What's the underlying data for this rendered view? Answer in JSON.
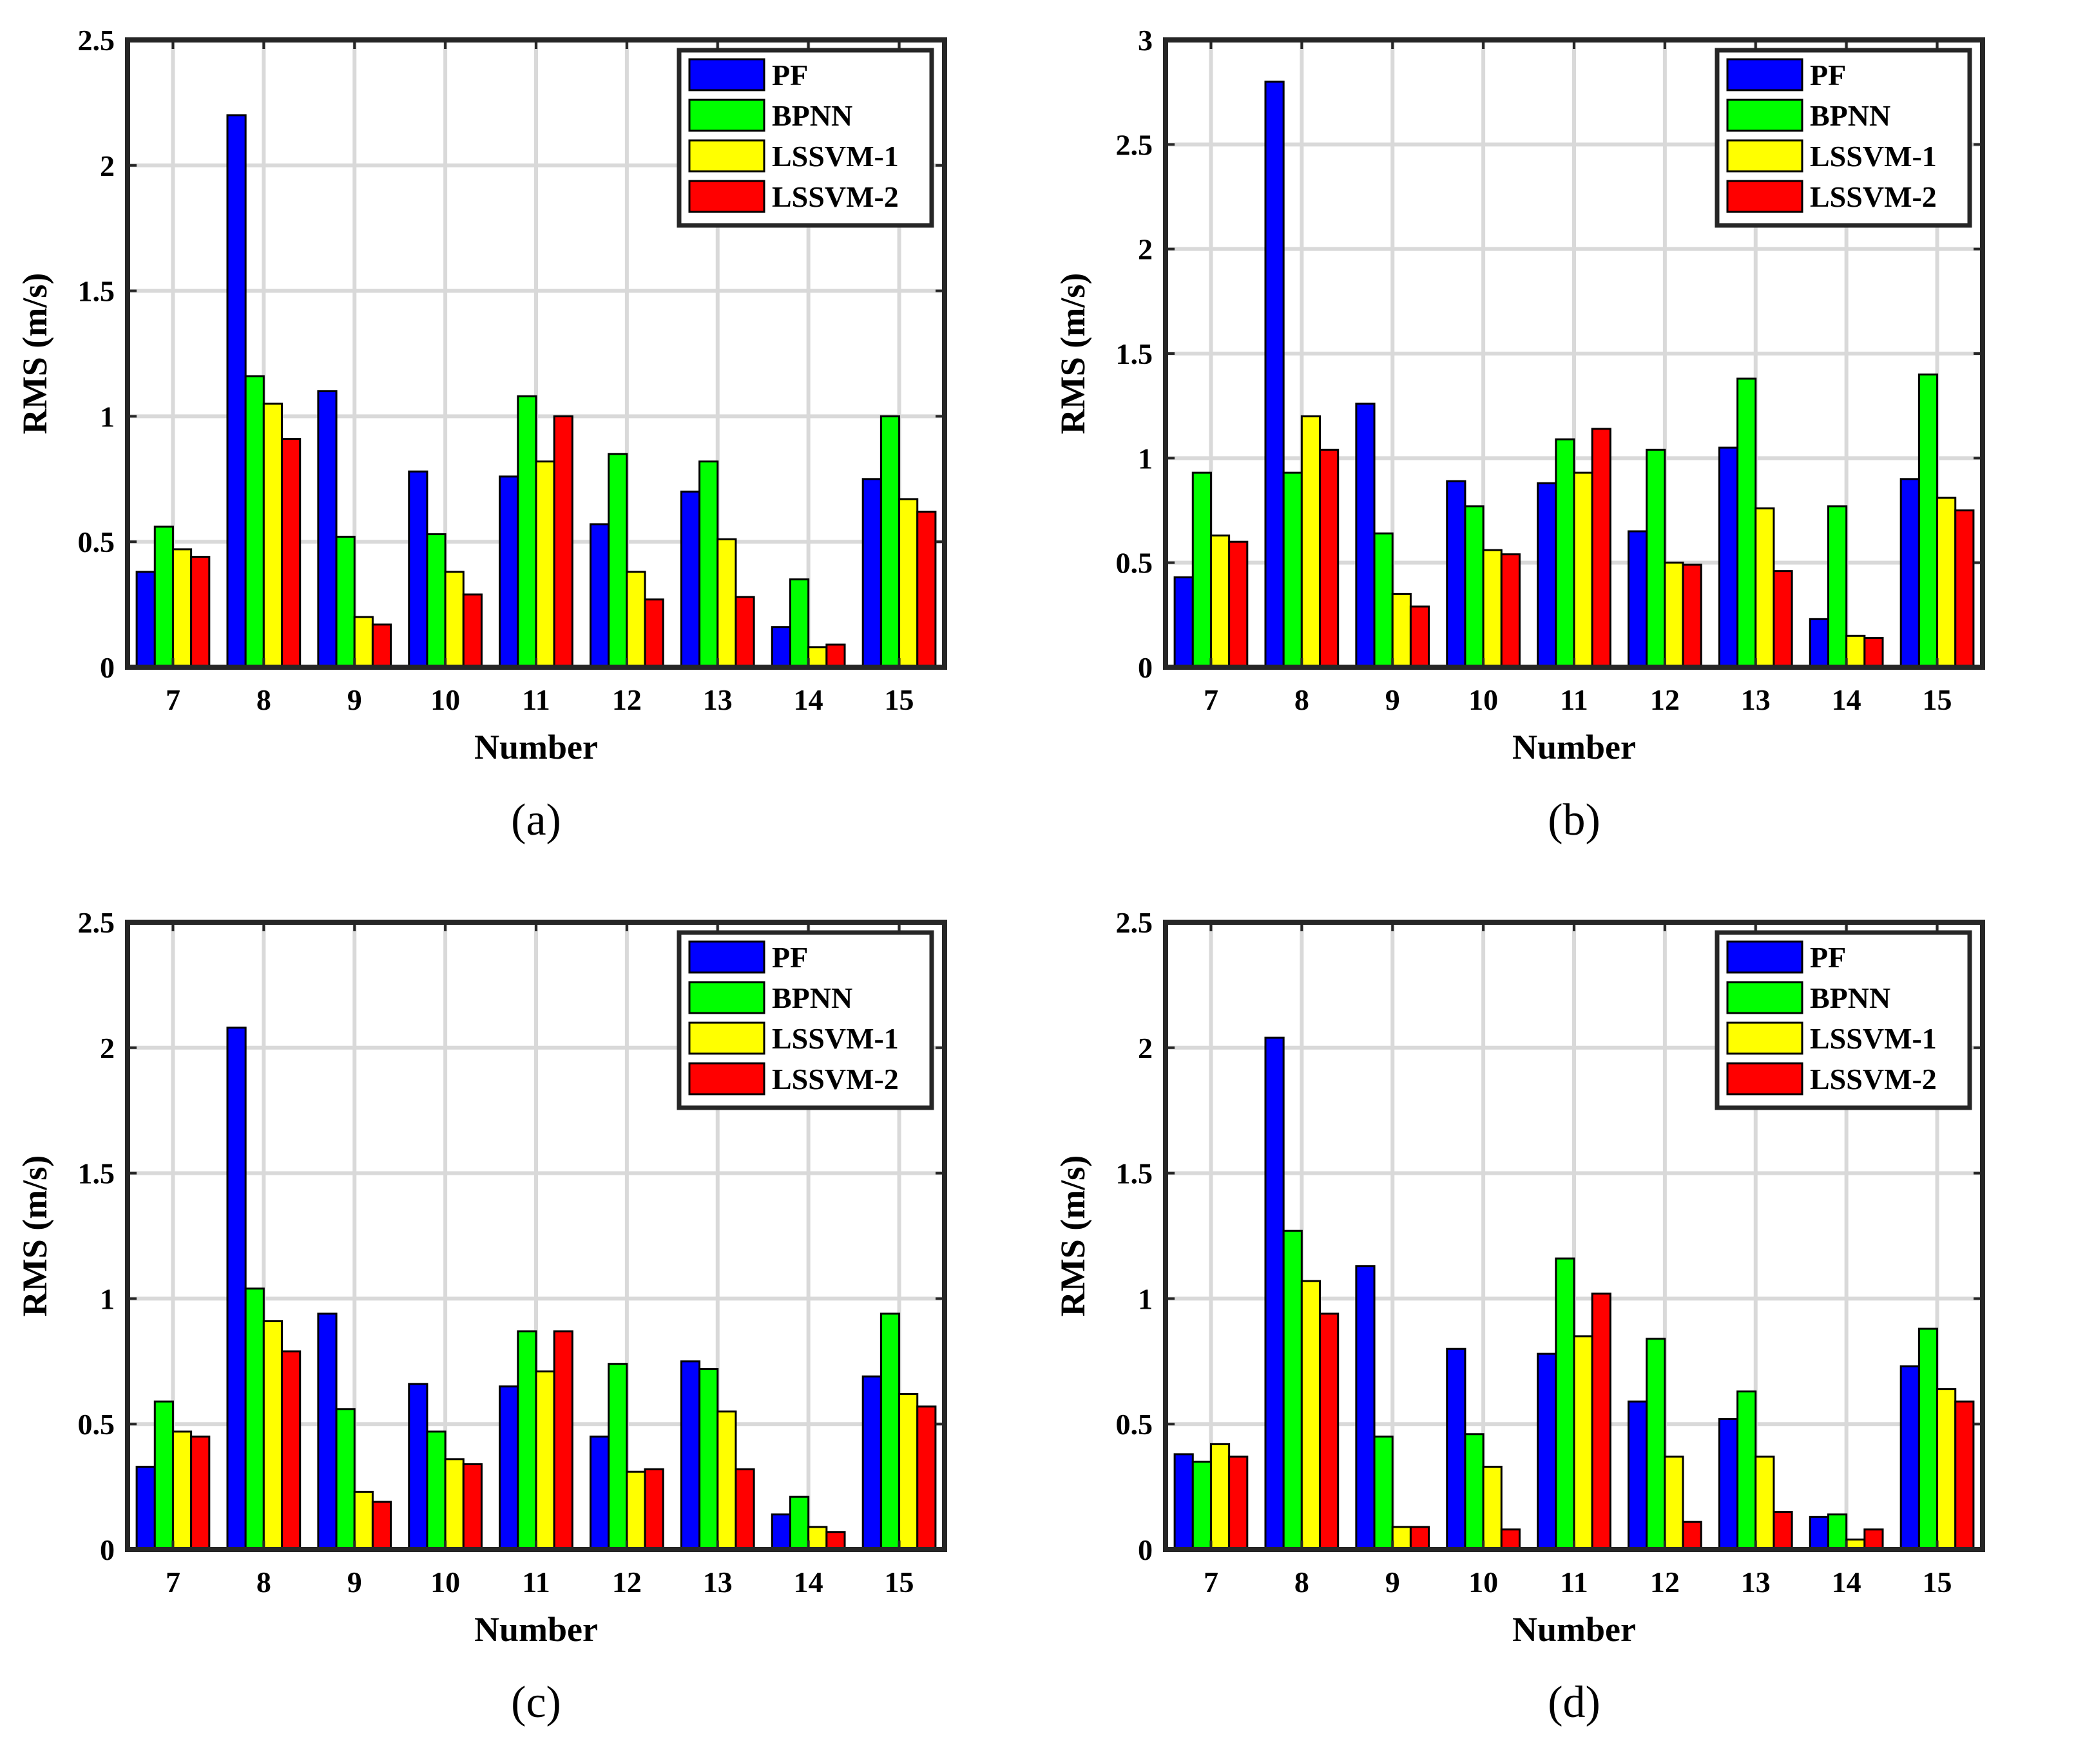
{
  "figure": {
    "colors": {
      "PF": "#0000ff",
      "BPNN": "#00ff00",
      "LSSVM-1": "#ffff00",
      "LSSVM-2": "#ff0000",
      "grid": "#d9d9d9",
      "axis": "#262626"
    }
  },
  "chart_data": [
    {
      "type": "bar",
      "panel_label": "(a)",
      "xlabel": "Number",
      "ylabel": "RMS (m/s)",
      "ylim": [
        0,
        2.5
      ],
      "yticks": [
        0,
        0.5,
        1,
        1.5,
        2,
        2.5
      ],
      "ytick_labels": [
        "0",
        "0.5",
        "1",
        "1.5",
        "2",
        "2.5"
      ],
      "categories": [
        "7",
        "8",
        "9",
        "10",
        "11",
        "12",
        "13",
        "14",
        "15"
      ],
      "legend_position": "top-right",
      "grid": true,
      "series": [
        {
          "name": "PF",
          "color": "#0000ff",
          "values": [
            0.38,
            2.2,
            1.1,
            0.78,
            0.76,
            0.57,
            0.7,
            0.16,
            0.75
          ]
        },
        {
          "name": "BPNN",
          "color": "#00ff00",
          "values": [
            0.56,
            1.16,
            0.52,
            0.53,
            1.08,
            0.85,
            0.82,
            0.35,
            1.0
          ]
        },
        {
          "name": "LSSVM-1",
          "color": "#ffff00",
          "values": [
            0.47,
            1.05,
            0.2,
            0.38,
            0.82,
            0.38,
            0.51,
            0.08,
            0.67
          ]
        },
        {
          "name": "LSSVM-2",
          "color": "#ff0000",
          "values": [
            0.44,
            0.91,
            0.17,
            0.29,
            1.0,
            0.27,
            0.28,
            0.09,
            0.62
          ]
        }
      ]
    },
    {
      "type": "bar",
      "panel_label": "(b)",
      "xlabel": "Number",
      "ylabel": "RMS (m/s)",
      "ylim": [
        0,
        3
      ],
      "yticks": [
        0,
        0.5,
        1,
        1.5,
        2,
        2.5,
        3
      ],
      "ytick_labels": [
        "0",
        "0.5",
        "1",
        "1.5",
        "2",
        "2.5",
        "3"
      ],
      "categories": [
        "7",
        "8",
        "9",
        "10",
        "11",
        "12",
        "13",
        "14",
        "15"
      ],
      "legend_position": "top-right",
      "grid": true,
      "series": [
        {
          "name": "PF",
          "color": "#0000ff",
          "values": [
            0.43,
            2.8,
            1.26,
            0.89,
            0.88,
            0.65,
            1.05,
            0.23,
            0.9
          ]
        },
        {
          "name": "BPNN",
          "color": "#00ff00",
          "values": [
            0.93,
            0.93,
            0.64,
            0.77,
            1.09,
            1.04,
            1.38,
            0.77,
            1.4
          ]
        },
        {
          "name": "LSSVM-1",
          "color": "#ffff00",
          "values": [
            0.63,
            1.2,
            0.35,
            0.56,
            0.93,
            0.5,
            0.76,
            0.15,
            0.81
          ]
        },
        {
          "name": "LSSVM-2",
          "color": "#ff0000",
          "values": [
            0.6,
            1.04,
            0.29,
            0.54,
            1.14,
            0.49,
            0.46,
            0.14,
            0.75
          ]
        }
      ]
    },
    {
      "type": "bar",
      "panel_label": "(c)",
      "xlabel": "Number",
      "ylabel": "RMS (m/s)",
      "ylim": [
        0,
        2.5
      ],
      "yticks": [
        0,
        0.5,
        1,
        1.5,
        2,
        2.5
      ],
      "ytick_labels": [
        "0",
        "0.5",
        "1",
        "1.5",
        "2",
        "2.5"
      ],
      "categories": [
        "7",
        "8",
        "9",
        "10",
        "11",
        "12",
        "13",
        "14",
        "15"
      ],
      "legend_position": "top-right",
      "grid": true,
      "series": [
        {
          "name": "PF",
          "color": "#0000ff",
          "values": [
            0.33,
            2.08,
            0.94,
            0.66,
            0.65,
            0.45,
            0.75,
            0.14,
            0.69
          ]
        },
        {
          "name": "BPNN",
          "color": "#00ff00",
          "values": [
            0.59,
            1.04,
            0.56,
            0.47,
            0.87,
            0.74,
            0.72,
            0.21,
            0.94
          ]
        },
        {
          "name": "LSSVM-1",
          "color": "#ffff00",
          "values": [
            0.47,
            0.91,
            0.23,
            0.36,
            0.71,
            0.31,
            0.55,
            0.09,
            0.62
          ]
        },
        {
          "name": "LSSVM-2",
          "color": "#ff0000",
          "values": [
            0.45,
            0.79,
            0.19,
            0.34,
            0.87,
            0.32,
            0.32,
            0.07,
            0.57
          ]
        }
      ]
    },
    {
      "type": "bar",
      "panel_label": "(d)",
      "xlabel": "Number",
      "ylabel": "RMS (m/s)",
      "ylim": [
        0,
        2.5
      ],
      "yticks": [
        0,
        0.5,
        1,
        1.5,
        2,
        2.5
      ],
      "ytick_labels": [
        "0",
        "0.5",
        "1",
        "1.5",
        "2",
        "2.5"
      ],
      "categories": [
        "7",
        "8",
        "9",
        "10",
        "11",
        "12",
        "13",
        "14",
        "15"
      ],
      "legend_position": "top-right",
      "grid": true,
      "series": [
        {
          "name": "PF",
          "color": "#0000ff",
          "values": [
            0.38,
            2.04,
            1.13,
            0.8,
            0.78,
            0.59,
            0.52,
            0.13,
            0.73
          ]
        },
        {
          "name": "BPNN",
          "color": "#00ff00",
          "values": [
            0.35,
            1.27,
            0.45,
            0.46,
            1.16,
            0.84,
            0.63,
            0.14,
            0.88
          ]
        },
        {
          "name": "LSSVM-1",
          "color": "#ffff00",
          "values": [
            0.42,
            1.07,
            0.09,
            0.33,
            0.85,
            0.37,
            0.37,
            0.04,
            0.64
          ]
        },
        {
          "name": "LSSVM-2",
          "color": "#ff0000",
          "values": [
            0.37,
            0.94,
            0.09,
            0.08,
            1.02,
            0.11,
            0.15,
            0.08,
            0.59
          ]
        }
      ]
    }
  ]
}
